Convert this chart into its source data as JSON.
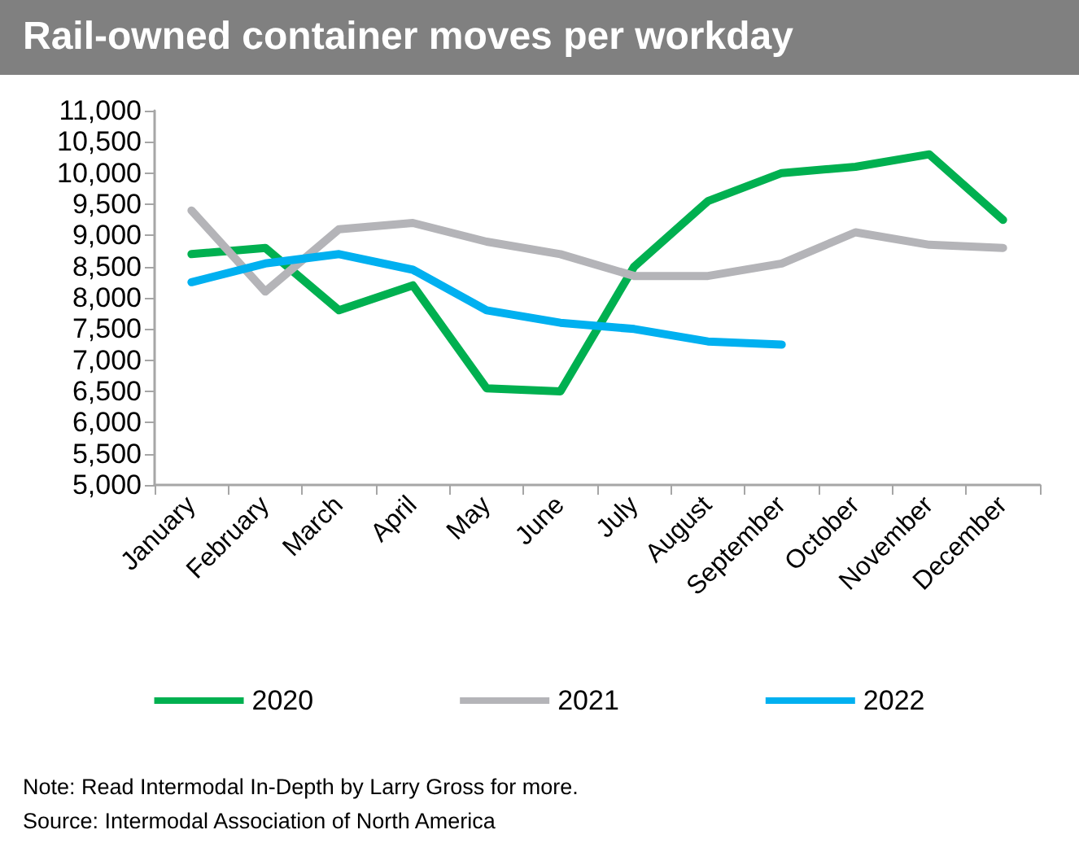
{
  "chart_data": {
    "type": "line",
    "title": "Rail-owned container moves per workday",
    "categories": [
      "January",
      "February",
      "March",
      "April",
      "May",
      "June",
      "July",
      "August",
      "September",
      "October",
      "November",
      "December"
    ],
    "series": [
      {
        "name": "2020",
        "color": "#00b050",
        "values": [
          8700,
          8800,
          7800,
          8200,
          6550,
          6500,
          8500,
          9550,
          10000,
          10100,
          10300,
          9250
        ]
      },
      {
        "name": "2021",
        "color": "#b4b4b8",
        "values": [
          9400,
          8100,
          9100,
          9200,
          8900,
          8700,
          8350,
          8350,
          8550,
          9050,
          8850,
          8800
        ]
      },
      {
        "name": "2022",
        "color": "#00b0f0",
        "values": [
          8250,
          8550,
          8700,
          8450,
          7800,
          7600,
          7500,
          7300,
          7250,
          null,
          null,
          null
        ]
      }
    ],
    "ylim": [
      5000,
      11000
    ],
    "yticks": [
      {
        "value": 5000,
        "label": "5,000"
      },
      {
        "value": 5500,
        "label": "5,500"
      },
      {
        "value": 6000,
        "label": "6,000"
      },
      {
        "value": 6500,
        "label": "6,500"
      },
      {
        "value": 7000,
        "label": "7,000"
      },
      {
        "value": 7500,
        "label": "7,500"
      },
      {
        "value": 8000,
        "label": "8,000"
      },
      {
        "value": 8500,
        "label": "8,500"
      },
      {
        "value": 9000,
        "label": "9,000"
      },
      {
        "value": 9500,
        "label": "9,500"
      },
      {
        "value": 10000,
        "label": "10,000"
      },
      {
        "value": 10500,
        "label": "10,500"
      },
      {
        "value": 11000,
        "label": "11,000"
      }
    ],
    "grid": false,
    "legend": "bottom",
    "marker": "none",
    "line_style": "solid",
    "annotations": [
      "Note: Read Intermodal In-Depth by Larry Gross for more.",
      "Source: Intermodal Association of North America"
    ]
  }
}
